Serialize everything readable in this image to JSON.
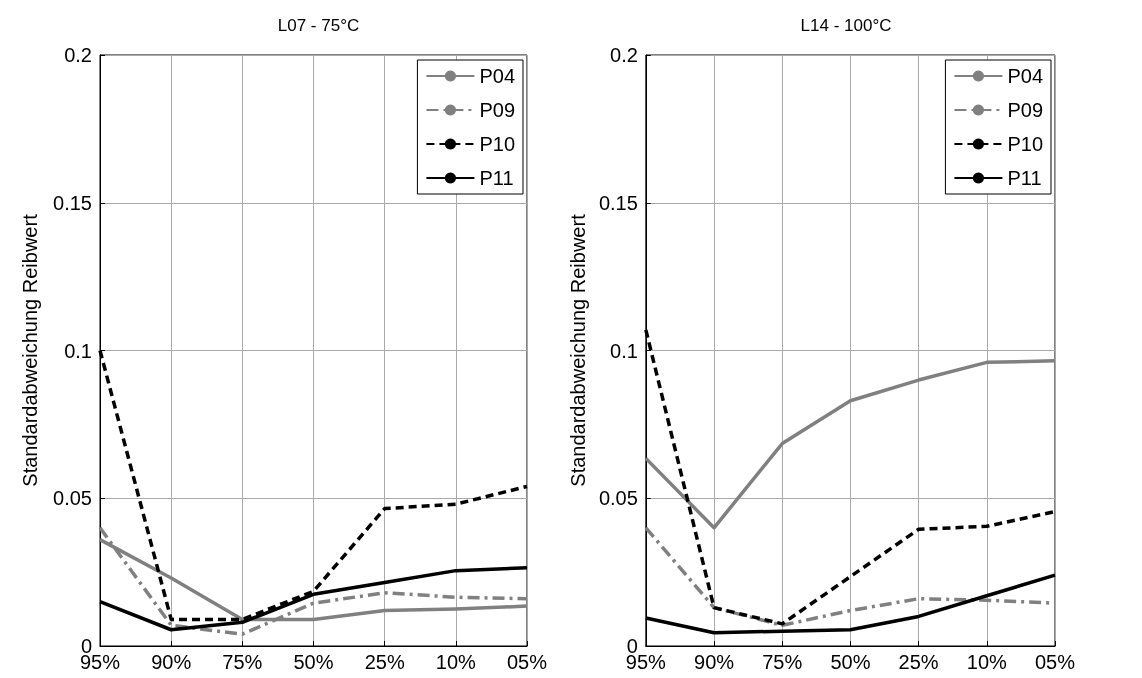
{
  "chart_data": [
    {
      "type": "line",
      "title": "L07 - 75°C",
      "ylabel": "Standardabweichung Reibwert",
      "categories": [
        "95%",
        "90%",
        "75%",
        "50%",
        "25%",
        "10%",
        "05%"
      ],
      "series": [
        {
          "name": "P04",
          "color": "#808080",
          "line_style": "solid",
          "values": [
            0.036,
            0.023,
            0.009,
            0.009,
            0.012,
            0.0125,
            0.0135
          ]
        },
        {
          "name": "P09",
          "color": "#808080",
          "line_style": "dashdot",
          "values": [
            0.04,
            0.007,
            0.004,
            0.0145,
            0.018,
            0.0165,
            0.016
          ]
        },
        {
          "name": "P10",
          "color": "#000000",
          "line_style": "dashed",
          "values": [
            0.1,
            0.009,
            0.009,
            0.0185,
            0.0465,
            0.048,
            0.054
          ]
        },
        {
          "name": "P11",
          "color": "#000000",
          "line_style": "solid",
          "values": [
            0.015,
            0.0055,
            0.008,
            0.0175,
            0.0215,
            0.0255,
            0.0265
          ]
        }
      ],
      "ylim": [
        0,
        0.2
      ],
      "yticks": [
        0,
        0.05,
        0.1,
        0.15,
        0.2
      ],
      "grid": true,
      "legend": "top right",
      "marker": "none"
    },
    {
      "type": "line",
      "title": "L14 - 100°C",
      "ylabel": "Standardabweichung Reibwert",
      "categories": [
        "95%",
        "90%",
        "75%",
        "50%",
        "25%",
        "10%",
        "05%"
      ],
      "series": [
        {
          "name": "P04",
          "color": "#808080",
          "line_style": "solid",
          "values": [
            0.0635,
            0.04,
            0.0685,
            0.083,
            0.09,
            0.096,
            0.0965
          ]
        },
        {
          "name": "P09",
          "color": "#808080",
          "line_style": "dashdot",
          "values": [
            0.04,
            0.013,
            0.007,
            0.012,
            0.016,
            0.0155,
            0.0145
          ]
        },
        {
          "name": "P10",
          "color": "#000000",
          "line_style": "dashed",
          "values": [
            0.107,
            0.013,
            0.0075,
            0.0235,
            0.0395,
            0.0405,
            0.0455
          ]
        },
        {
          "name": "P11",
          "color": "#000000",
          "line_style": "solid",
          "values": [
            0.0095,
            0.0045,
            0.005,
            0.0055,
            0.01,
            0.017,
            0.024
          ]
        }
      ],
      "ylim": [
        0,
        0.2
      ],
      "yticks": [
        0,
        0.05,
        0.1,
        0.15,
        0.2
      ],
      "grid": true,
      "legend": "top right",
      "marker": "none"
    }
  ]
}
